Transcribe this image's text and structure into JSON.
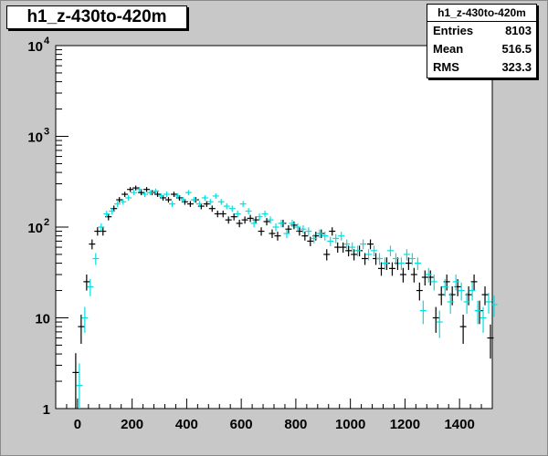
{
  "title": "h1_z-430to-420m",
  "stats": {
    "name": "h1_z-430to-420m",
    "rows": [
      {
        "label": "Entries",
        "value": "8103"
      },
      {
        "label": "Mean",
        "value": "516.5"
      },
      {
        "label": "RMS",
        "value": "323.3"
      }
    ]
  },
  "colors": {
    "background": "#c8c8c8",
    "frame": "#ffffff",
    "series1": "#000000",
    "series2": "#00e0e0"
  },
  "chart_data": {
    "type": "scatter",
    "title": "h1_z-430to-420m",
    "xlabel": "",
    "ylabel": "",
    "xlim": [
      -80,
      1520
    ],
    "ylim": [
      1,
      10000
    ],
    "ylog": true,
    "xticks": [
      0,
      200,
      400,
      600,
      800,
      1000,
      1200,
      1400
    ],
    "yticks": [
      {
        "base": "1",
        "exp": ""
      },
      {
        "base": "10",
        "exp": ""
      },
      {
        "base": "10",
        "exp": "2"
      },
      {
        "base": "10",
        "exp": "3"
      },
      {
        "base": "10",
        "exp": "4"
      }
    ],
    "grid": false,
    "series": [
      {
        "values": [
          [
            0,
            2.5
          ],
          [
            20,
            8
          ],
          [
            40,
            25
          ],
          [
            60,
            65
          ],
          [
            80,
            90
          ],
          [
            100,
            90
          ],
          [
            120,
            130
          ],
          [
            140,
            160
          ],
          [
            160,
            200
          ],
          [
            180,
            230
          ],
          [
            200,
            260
          ],
          [
            220,
            270
          ],
          [
            240,
            240
          ],
          [
            260,
            260
          ],
          [
            280,
            240
          ],
          [
            300,
            230
          ],
          [
            320,
            210
          ],
          [
            340,
            200
          ],
          [
            360,
            230
          ],
          [
            380,
            210
          ],
          [
            400,
            190
          ],
          [
            420,
            180
          ],
          [
            440,
            200
          ],
          [
            460,
            170
          ],
          [
            480,
            180
          ],
          [
            500,
            160
          ],
          [
            520,
            140
          ],
          [
            540,
            140
          ],
          [
            560,
            120
          ],
          [
            580,
            130
          ],
          [
            600,
            110
          ],
          [
            620,
            120
          ],
          [
            640,
            125
          ],
          [
            660,
            120
          ],
          [
            680,
            90
          ],
          [
            700,
            115
          ],
          [
            720,
            85
          ],
          [
            740,
            80
          ],
          [
            760,
            110
          ],
          [
            780,
            95
          ],
          [
            800,
            105
          ],
          [
            820,
            90
          ],
          [
            840,
            80
          ],
          [
            860,
            70
          ],
          [
            880,
            80
          ],
          [
            900,
            85
          ],
          [
            920,
            50
          ],
          [
            940,
            90
          ],
          [
            960,
            60
          ],
          [
            980,
            60
          ],
          [
            1000,
            55
          ],
          [
            1020,
            50
          ],
          [
            1040,
            55
          ],
          [
            1060,
            45
          ],
          [
            1080,
            65
          ],
          [
            1100,
            45
          ],
          [
            1120,
            35
          ],
          [
            1140,
            40
          ],
          [
            1160,
            35
          ],
          [
            1180,
            40
          ],
          [
            1200,
            30
          ],
          [
            1220,
            40
          ],
          [
            1240,
            30
          ],
          [
            1260,
            20
          ],
          [
            1280,
            28
          ],
          [
            1300,
            28
          ],
          [
            1320,
            10
          ],
          [
            1340,
            18
          ],
          [
            1360,
            25
          ],
          [
            1380,
            18
          ],
          [
            1400,
            22
          ],
          [
            1420,
            8
          ],
          [
            1440,
            18
          ],
          [
            1460,
            25
          ],
          [
            1480,
            12
          ],
          [
            1500,
            18
          ],
          [
            1520,
            6
          ]
        ]
      },
      {
        "values": [
          [
            0,
            1.8
          ],
          [
            20,
            10
          ],
          [
            40,
            22
          ],
          [
            60,
            45
          ],
          [
            80,
            100
          ],
          [
            100,
            140
          ],
          [
            120,
            150
          ],
          [
            140,
            180
          ],
          [
            160,
            190
          ],
          [
            180,
            210
          ],
          [
            200,
            240
          ],
          [
            220,
            260
          ],
          [
            240,
            230
          ],
          [
            260,
            240
          ],
          [
            280,
            250
          ],
          [
            300,
            220
          ],
          [
            320,
            230
          ],
          [
            340,
            180
          ],
          [
            360,
            220
          ],
          [
            380,
            200
          ],
          [
            400,
            240
          ],
          [
            420,
            200
          ],
          [
            440,
            180
          ],
          [
            460,
            210
          ],
          [
            480,
            190
          ],
          [
            500,
            220
          ],
          [
            520,
            190
          ],
          [
            540,
            170
          ],
          [
            560,
            160
          ],
          [
            580,
            140
          ],
          [
            600,
            180
          ],
          [
            620,
            150
          ],
          [
            640,
            110
          ],
          [
            660,
            130
          ],
          [
            680,
            140
          ],
          [
            700,
            120
          ],
          [
            720,
            100
          ],
          [
            740,
            110
          ],
          [
            760,
            85
          ],
          [
            780,
            110
          ],
          [
            800,
            100
          ],
          [
            820,
            95
          ],
          [
            840,
            90
          ],
          [
            860,
            75
          ],
          [
            880,
            85
          ],
          [
            900,
            80
          ],
          [
            920,
            70
          ],
          [
            940,
            75
          ],
          [
            960,
            80
          ],
          [
            980,
            65
          ],
          [
            1000,
            60
          ],
          [
            1020,
            55
          ],
          [
            1040,
            65
          ],
          [
            1060,
            50
          ],
          [
            1080,
            55
          ],
          [
            1100,
            45
          ],
          [
            1120,
            40
          ],
          [
            1140,
            55
          ],
          [
            1160,
            45
          ],
          [
            1180,
            40
          ],
          [
            1200,
            50
          ],
          [
            1220,
            45
          ],
          [
            1240,
            40
          ],
          [
            1260,
            12
          ],
          [
            1280,
            30
          ],
          [
            1300,
            25
          ],
          [
            1320,
            9
          ],
          [
            1340,
            22
          ],
          [
            1360,
            15
          ],
          [
            1380,
            25
          ],
          [
            1400,
            20
          ],
          [
            1420,
            15
          ],
          [
            1440,
            20
          ],
          [
            1460,
            12
          ],
          [
            1480,
            10
          ],
          [
            1500,
            15
          ],
          [
            1520,
            14
          ]
        ]
      }
    ]
  }
}
